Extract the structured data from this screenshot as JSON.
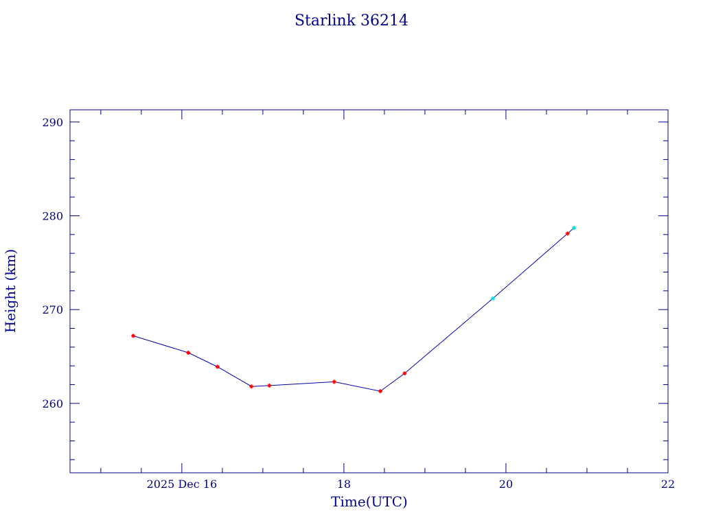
{
  "chart_data": {
    "type": "line",
    "title": "Starlink 36214",
    "xlabel": "Time(UTC)",
    "ylabel": "Height (km)",
    "x_axis": {
      "unit": "days (December 2025)",
      "range": [
        14.62,
        22.0
      ],
      "ticks": [
        {
          "value": 16,
          "label": "2025 Dec 16"
        },
        {
          "value": 18,
          "label": "18"
        },
        {
          "value": 20,
          "label": "20"
        },
        {
          "value": 22,
          "label": "22"
        }
      ],
      "minor_step": 0.5
    },
    "y_axis": {
      "range": [
        252.6,
        291.3
      ],
      "ticks": [
        260,
        270,
        280,
        290
      ],
      "minor_step": 2
    },
    "grid": false,
    "series": [
      {
        "color": "#0000aa",
        "marker_color": "#ff0000",
        "points": [
          {
            "x": 15.4,
            "y": 267.2
          },
          {
            "x": 16.08,
            "y": 265.4
          },
          {
            "x": 16.44,
            "y": 263.9
          },
          {
            "x": 16.86,
            "y": 261.8
          },
          {
            "x": 17.08,
            "y": 261.9
          },
          {
            "x": 17.88,
            "y": 262.3
          },
          {
            "x": 18.45,
            "y": 261.3
          },
          {
            "x": 18.75,
            "y": 263.2
          },
          {
            "x": 20.76,
            "y": 278.1
          }
        ]
      },
      {
        "color": "#0000aa",
        "marker_color": "#00e0e0",
        "points": [
          {
            "x": 19.84,
            "y": 271.2
          },
          {
            "x": 20.84,
            "y": 278.7
          }
        ]
      }
    ],
    "line_order": [
      {
        "x": 15.4,
        "y": 267.2
      },
      {
        "x": 16.08,
        "y": 265.4
      },
      {
        "x": 16.44,
        "y": 263.9
      },
      {
        "x": 16.86,
        "y": 261.8
      },
      {
        "x": 17.08,
        "y": 261.9
      },
      {
        "x": 17.88,
        "y": 262.3
      },
      {
        "x": 18.45,
        "y": 261.3
      },
      {
        "x": 18.75,
        "y": 263.2
      },
      {
        "x": 19.84,
        "y": 271.2
      },
      {
        "x": 20.76,
        "y": 278.1
      },
      {
        "x": 20.84,
        "y": 278.7
      }
    ]
  }
}
